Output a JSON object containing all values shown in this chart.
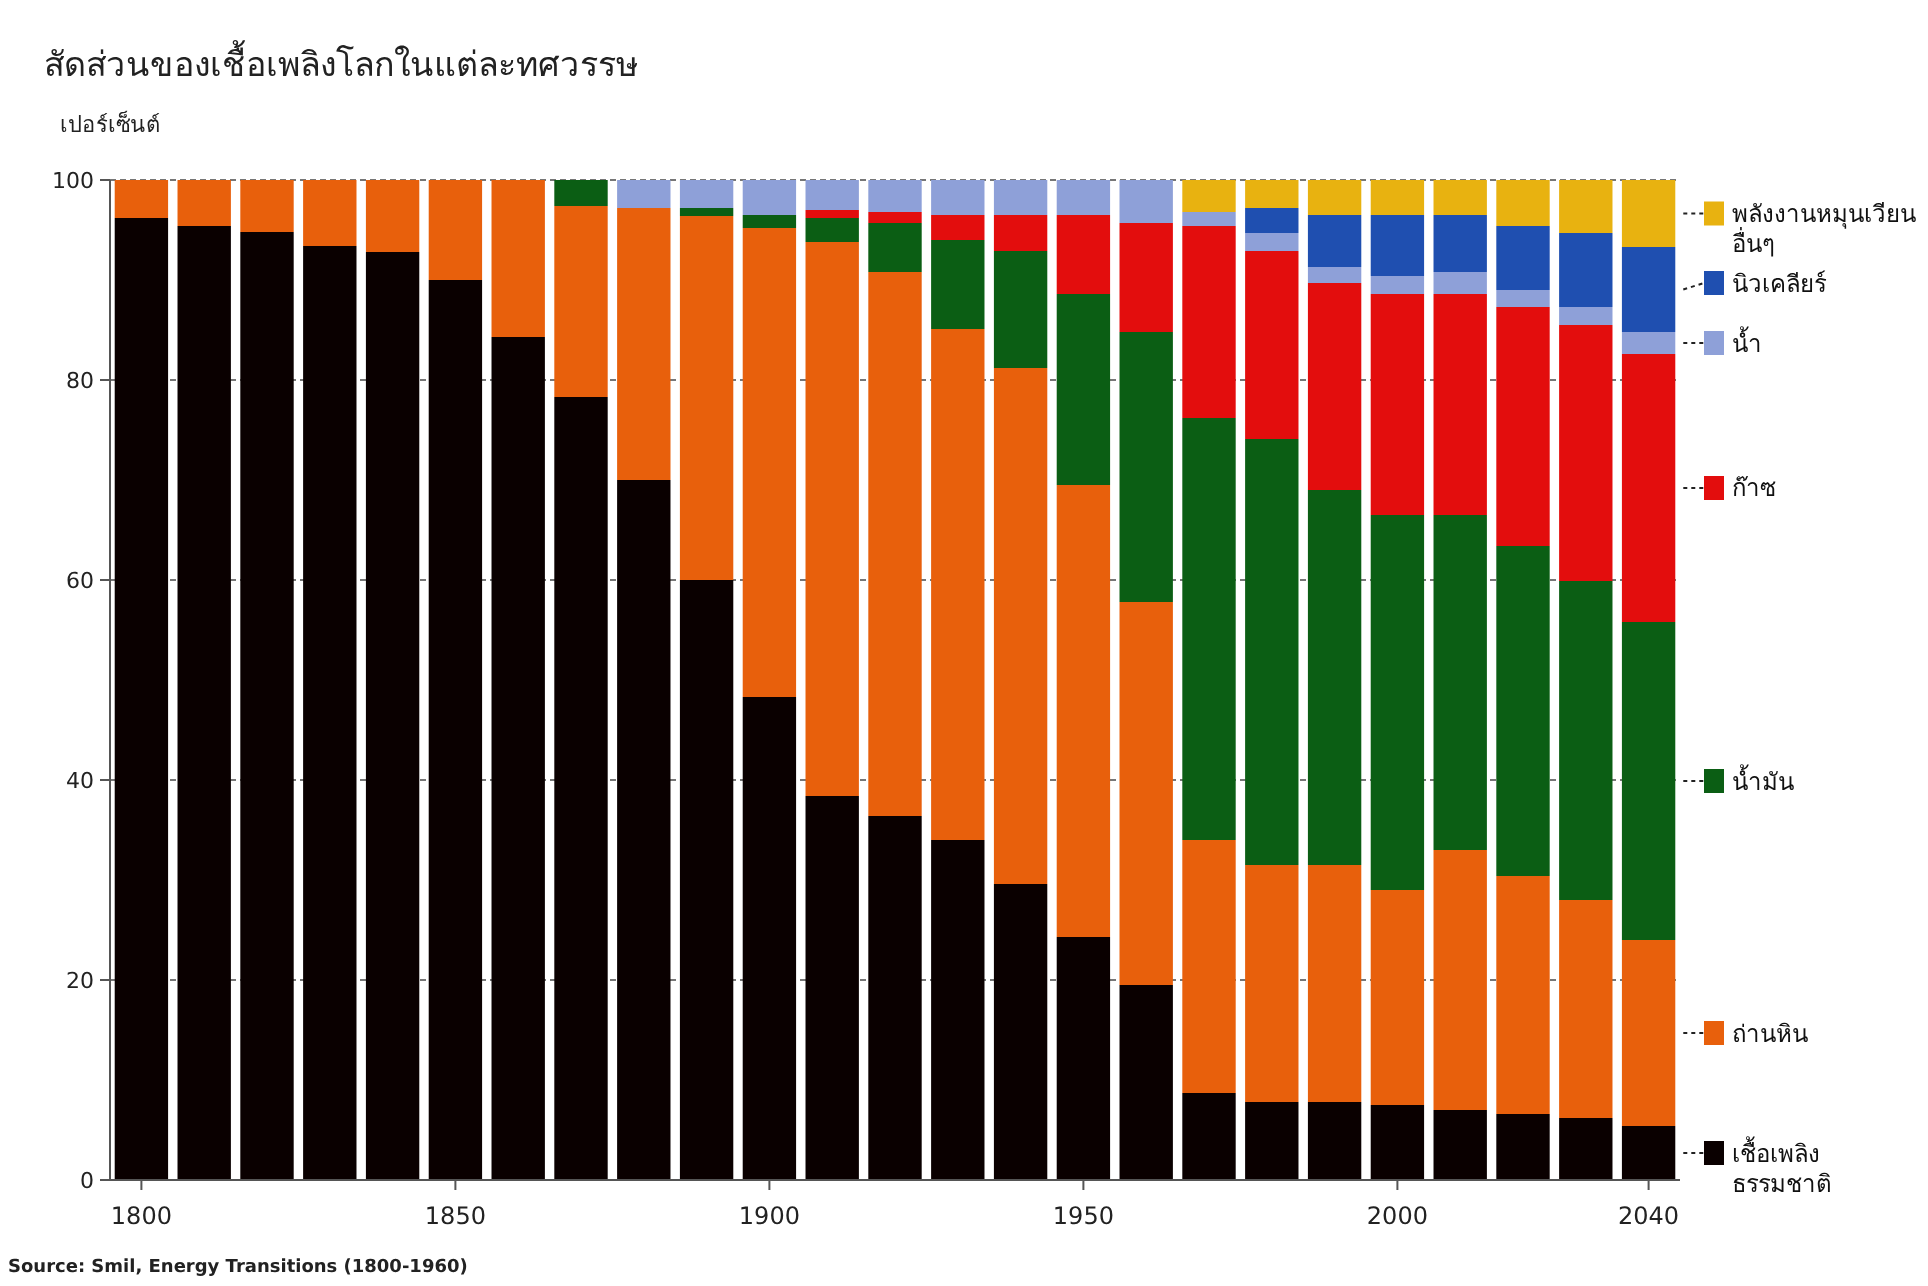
{
  "chart_data": {
    "type": "bar",
    "stacked": true,
    "title": "สัดส่วนของเชื้อเพลิงโลกในแต่ละทศวรรษ",
    "ylabel": "เปอร์เซ็นต์",
    "x": [
      1800,
      1810,
      1820,
      1830,
      1840,
      1850,
      1860,
      1870,
      1880,
      1890,
      1900,
      1910,
      1920,
      1930,
      1940,
      1950,
      1960,
      1970,
      1980,
      1990,
      2000,
      2010,
      2020,
      2030,
      2040
    ],
    "xlim": [
      1795,
      2045
    ],
    "xticks": [
      1800,
      1850,
      1900,
      1950,
      2000,
      2040
    ],
    "ylim": [
      0,
      100
    ],
    "yticks": [
      0,
      20,
      40,
      60,
      80,
      100
    ],
    "grid": "y",
    "legend": "right",
    "series": [
      {
        "name": "เชื้อเพลิงธรรมชาติ",
        "color": "#0a0000",
        "values": [
          96.2,
          95.4,
          94.8,
          93.4,
          92.8,
          90,
          84.3,
          78.3,
          70,
          60,
          48.3,
          38.4,
          36.4,
          34,
          29.6,
          24.3,
          19.5,
          8.7,
          7.8,
          7.8,
          7.5,
          7,
          6.6,
          6.2,
          5.4
        ]
      },
      {
        "name": "ถ่านหิน",
        "color": "#e8600c",
        "values": [
          3.8,
          4.6,
          5.2,
          6.6,
          7.2,
          10,
          15.7,
          19.1,
          27.2,
          36.4,
          46.9,
          55.4,
          54.4,
          51.1,
          51.6,
          45.2,
          38.3,
          25.3,
          23.7,
          23.7,
          21.5,
          26,
          23.8,
          21.8,
          18.6
        ]
      },
      {
        "name": "น้ำมัน",
        "color": "#0b5e14",
        "values": [
          0,
          0,
          0,
          0,
          0,
          0,
          0,
          2.6,
          0,
          0.8,
          1.3,
          2.4,
          4.9,
          8.9,
          11.7,
          19.1,
          27,
          42.2,
          42.6,
          37.5,
          37.5,
          33.5,
          33,
          31.9,
          31.8
        ]
      },
      {
        "name": "ก๊าซ",
        "color": "#e30d0d",
        "values": [
          0,
          0,
          0,
          0,
          0,
          0,
          0,
          0,
          0,
          0,
          0,
          0.8,
          1.1,
          2.5,
          3.6,
          7.9,
          10.9,
          19.2,
          18.8,
          20.7,
          22.1,
          22.1,
          23.9,
          25.6,
          26.8
        ]
      },
      {
        "name": "น้ำ",
        "color": "#8ea0d8",
        "values": [
          0,
          0,
          0,
          0,
          0,
          0,
          0,
          0,
          2.8,
          2.8,
          3.5,
          3,
          3.2,
          3.5,
          3.5,
          3.5,
          4.3,
          1.4,
          1.8,
          1.6,
          1.8,
          2.2,
          1.7,
          1.8,
          2.2
        ]
      },
      {
        "name": "นิวเคลียร์",
        "color": "#1f4fb0",
        "values": [
          0,
          0,
          0,
          0,
          0,
          0,
          0,
          0,
          0,
          0,
          0,
          0,
          0,
          0,
          0,
          0,
          0,
          0,
          2.5,
          5.2,
          6.1,
          5.7,
          6.4,
          7.4,
          8.5
        ]
      },
      {
        "name": "พลังงานหมุนเวียนอื่นๆ",
        "color": "#e8b210",
        "values": [
          0,
          0,
          0,
          0,
          0,
          0,
          0,
          0,
          0,
          0,
          0,
          0,
          0,
          0,
          0,
          0,
          0,
          3.2,
          2.8,
          3.5,
          3.5,
          3.5,
          4.6,
          5.3,
          6.7
        ]
      }
    ],
    "annotations": [
      "Source: Smil, Energy Transitions (1800-1960)"
    ]
  }
}
